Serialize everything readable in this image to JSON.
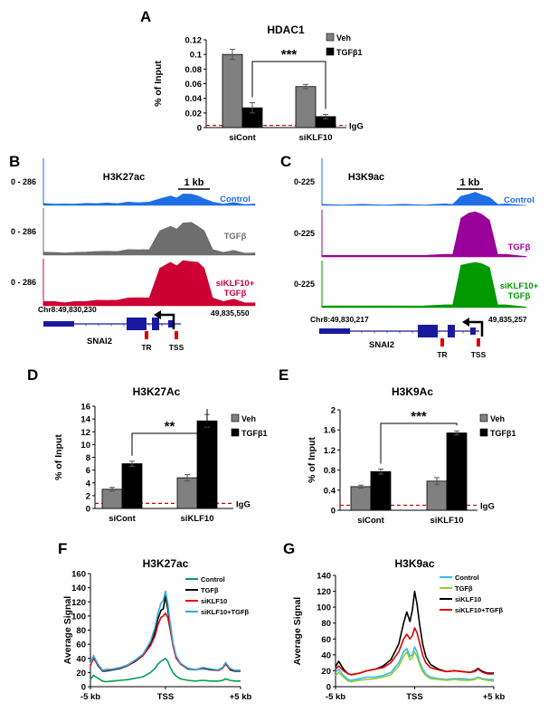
{
  "panels": {
    "A": {
      "letter": "A",
      "chart_data": {
        "type": "bar",
        "title": "HDAC1",
        "ylabel": "% of Input",
        "categories": [
          "siCont",
          "siKLF10"
        ],
        "series": [
          {
            "name": "Veh",
            "values": [
              0.1,
              0.056
            ],
            "errors": [
              0.007,
              0.003
            ],
            "color": "#808080"
          },
          {
            "name": "TGFβ1",
            "values": [
              0.027,
              0.015
            ],
            "errors": [
              0.007,
              0.003
            ],
            "color": "#000000"
          }
        ],
        "ylim": [
          0,
          0.12
        ],
        "yticks": [
          "0",
          "0.02",
          "0.04",
          "0.06",
          "0.08",
          "0.1",
          "0.12"
        ],
        "igg_level": 0.003,
        "igg_label": "IgG",
        "significance": "***",
        "legend": "top-right"
      }
    },
    "B": {
      "letter": "B",
      "title": "H3K27ac",
      "scale_label": "1 kb",
      "tracks": [
        {
          "range": "0 - 286",
          "label": "Control",
          "color": "#1e6fe6"
        },
        {
          "range": "0 - 286",
          "label": "TGFβ",
          "color": "#6e6e6e"
        },
        {
          "range": "0 - 286",
          "label": "siKLF10+\nTGFβ",
          "color": "#cc0033"
        }
      ],
      "coord_left": "Chr8:49,830,230",
      "coord_right": "49,835,550",
      "gene": "SNAI2",
      "site_tr": "TR",
      "site_tss": "TSS"
    },
    "C": {
      "letter": "C",
      "title": "H3K9ac",
      "scale_label": "1 kb",
      "tracks": [
        {
          "range": "0-225",
          "label": "Control",
          "color": "#1e6fe6"
        },
        {
          "range": "0-225",
          "label": "TGFβ",
          "color": "#990099"
        },
        {
          "range": "0-225",
          "label": "siKLF10+\nTGFβ",
          "color": "#009900"
        }
      ],
      "coord_left": "Chr8:49,830,217",
      "coord_right": "49,835,257",
      "gene": "SNAI2",
      "site_tr": "TR",
      "site_tss": "TSS"
    },
    "D": {
      "letter": "D",
      "chart_data": {
        "type": "bar",
        "title": "H3K27Ac",
        "ylabel": "% of Input",
        "categories": [
          "siCont",
          "siKLF10"
        ],
        "series": [
          {
            "name": "Veh",
            "values": [
              3.0,
              4.8
            ],
            "errors": [
              0.3,
              0.5
            ],
            "color": "#808080"
          },
          {
            "name": "TGFβ1",
            "values": [
              7.0,
              13.7
            ],
            "errors": [
              0.4,
              1.0
            ],
            "color": "#000000"
          }
        ],
        "ylim": [
          0,
          16
        ],
        "yticks": [
          "0",
          "2",
          "4",
          "6",
          "8",
          "10",
          "12",
          "14",
          "16"
        ],
        "igg_level": 0.8,
        "igg_label": "IgG",
        "significance": "**",
        "legend": "top-right"
      }
    },
    "E": {
      "letter": "E",
      "chart_data": {
        "type": "bar",
        "title": "H3K9Ac",
        "ylabel": "% of Input",
        "categories": [
          "siCont",
          "siKLF10"
        ],
        "series": [
          {
            "name": "Veh",
            "values": [
              0.47,
              0.58
            ],
            "errors": [
              0.03,
              0.07
            ],
            "color": "#808080"
          },
          {
            "name": "TGFβ1",
            "values": [
              0.77,
              1.54
            ],
            "errors": [
              0.05,
              0.04
            ],
            "color": "#000000"
          }
        ],
        "ylim": [
          0,
          2
        ],
        "yticks": [
          "0",
          "0.4",
          "0.8",
          "1.2",
          "1.6",
          "2"
        ],
        "igg_level": 0.1,
        "igg_label": "IgG",
        "significance": "***",
        "legend": "top-right"
      }
    },
    "F": {
      "letter": "F",
      "chart_data": {
        "type": "line",
        "title": "H3K27ac",
        "ylabel": "Average Signal",
        "xticks": [
          "-5 kb",
          "TSS",
          "+5 kb"
        ],
        "ylim": [
          0,
          160
        ],
        "yticks": [
          "0",
          "20",
          "40",
          "60",
          "80",
          "100",
          "120",
          "140",
          "160"
        ],
        "x": [
          -5.0,
          -4.8,
          -4.5,
          -4.2,
          -4.0,
          -3.5,
          -3.0,
          -2.5,
          -2.0,
          -1.5,
          -1.0,
          -0.7,
          -0.5,
          -0.3,
          -0.15,
          0.0,
          0.15,
          0.3,
          0.5,
          0.7,
          1.0,
          1.5,
          2.0,
          2.5,
          3.0,
          3.5,
          3.8,
          4.0,
          4.3,
          4.6,
          5.0
        ],
        "series": [
          {
            "name": "Control",
            "color": "#00a050",
            "values": [
              10,
              16,
              12,
              8,
              7,
              8,
              9,
              10,
              12,
              14,
              20,
              26,
              32,
              36,
              38,
              40,
              36,
              28,
              20,
              15,
              11,
              9,
              8,
              9,
              8,
              8,
              9,
              11,
              9,
              8,
              8
            ]
          },
          {
            "name": "TGFβ",
            "color": "#000000",
            "values": [
              30,
              42,
              30,
              22,
              22,
              24,
              26,
              30,
              36,
              44,
              60,
              78,
              96,
              108,
              110,
              128,
              110,
              88,
              60,
              42,
              32,
              25,
              24,
              26,
              24,
              23,
              26,
              33,
              24,
              22,
              22
            ]
          },
          {
            "name": "siKLF10",
            "color": "#e00000",
            "values": [
              30,
              40,
              31,
              23,
              24,
              25,
              27,
              30,
              37,
              44,
              58,
              72,
              88,
              98,
              100,
              104,
              98,
              82,
              58,
              41,
              32,
              26,
              24,
              27,
              25,
              23,
              26,
              32,
              25,
              23,
              23
            ]
          },
          {
            "name": "siKLF10+TGFβ",
            "color": "#33aadd",
            "values": [
              32,
              44,
              32,
              23,
              23,
              25,
              27,
              31,
              38,
              46,
              64,
              84,
              104,
              118,
              122,
              135,
              118,
              92,
              62,
              44,
              33,
              26,
              24,
              27,
              25,
              24,
              27,
              34,
              26,
              23,
              23
            ]
          }
        ],
        "legend": "top-right"
      }
    },
    "G": {
      "letter": "G",
      "chart_data": {
        "type": "line",
        "title": "H3K9ac",
        "ylabel": "Average Signal",
        "xticks": [
          "-5 kb",
          "TSS",
          "+5 kb"
        ],
        "ylim": [
          0,
          140
        ],
        "yticks": [
          "0",
          "20",
          "40",
          "60",
          "80",
          "100",
          "120",
          "140"
        ],
        "x": [
          -5.0,
          -4.8,
          -4.5,
          -4.2,
          -4.0,
          -3.5,
          -3.0,
          -2.5,
          -2.0,
          -1.5,
          -1.0,
          -0.7,
          -0.5,
          -0.3,
          -0.15,
          0.0,
          0.15,
          0.3,
          0.5,
          0.7,
          1.0,
          1.5,
          2.0,
          2.5,
          3.0,
          3.5,
          3.8,
          4.0,
          4.3,
          4.6,
          5.0
        ],
        "series": [
          {
            "name": "Control",
            "color": "#33bbee",
            "values": [
              18,
              22,
              14,
              9,
              8,
              10,
              12,
              12,
              14,
              18,
              30,
              44,
              48,
              38,
              40,
              50,
              44,
              32,
              22,
              16,
              12,
              10,
              9,
              10,
              10,
              9,
              10,
              12,
              10,
              9,
              9
            ]
          },
          {
            "name": "TGFβ",
            "color": "#99cc33",
            "values": [
              14,
              18,
              12,
              7,
              6,
              8,
              9,
              10,
              12,
              15,
              26,
              38,
              44,
              34,
              36,
              44,
              38,
              28,
              19,
              14,
              10,
              9,
              8,
              9,
              8,
              8,
              9,
              11,
              9,
              8,
              7
            ]
          },
          {
            "name": "siKLF10",
            "color": "#000000",
            "values": [
              25,
              32,
              22,
              16,
              15,
              17,
              20,
              22,
              26,
              34,
              54,
              80,
              94,
              82,
              96,
              120,
              104,
              80,
              54,
              38,
              28,
              22,
              19,
              20,
              19,
              18,
              20,
              23,
              19,
              17,
              17
            ]
          },
          {
            "name": "siKLF10+TGFβ",
            "color": "#e00000",
            "values": [
              22,
              26,
              20,
              16,
              15,
              17,
              20,
              22,
              24,
              30,
              44,
              60,
              66,
              60,
              64,
              74,
              68,
              56,
              40,
              30,
              24,
              21,
              19,
              20,
              19,
              18,
              19,
              22,
              18,
              16,
              16
            ]
          }
        ],
        "legend": "top-right"
      }
    }
  }
}
